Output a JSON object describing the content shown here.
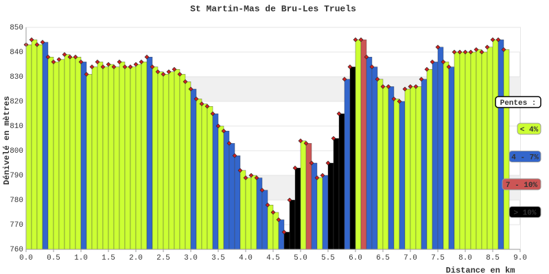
{
  "chart_data": {
    "type": "elevation-bar",
    "title": "St Martin-Mas de Bru-Les Truels",
    "x_label": "Distance en km",
    "y_label": "Dénivelé en mètres",
    "legend_title": "Pentes :",
    "slope_classes": [
      {
        "label": "< 4%",
        "color": "#ccff33"
      },
      {
        "label": "4 - 7%",
        "color": "#3366cc"
      },
      {
        "label": "7 - 10%",
        "color": "#cc5555"
      },
      {
        "label": "> 10%",
        "color": "#000000"
      }
    ],
    "x": [
      0.0,
      0.1,
      0.2,
      0.3,
      0.4,
      0.5,
      0.6,
      0.7,
      0.8,
      0.9,
      1.0,
      1.1,
      1.2,
      1.3,
      1.4,
      1.5,
      1.6,
      1.7,
      1.8,
      1.9,
      2.0,
      2.1,
      2.2,
      2.3,
      2.4,
      2.5,
      2.6,
      2.7,
      2.8,
      2.9,
      3.0,
      3.1,
      3.2,
      3.3,
      3.4,
      3.5,
      3.6,
      3.7,
      3.8,
      3.9,
      4.0,
      4.1,
      4.2,
      4.3,
      4.4,
      4.5,
      4.6,
      4.7,
      4.8,
      4.9,
      5.0,
      5.1,
      5.2,
      5.3,
      5.4,
      5.5,
      5.6,
      5.7,
      5.8,
      5.9,
      6.0,
      6.1,
      6.2,
      6.3,
      6.4,
      6.5,
      6.6,
      6.7,
      6.8,
      6.9,
      7.0,
      7.1,
      7.2,
      7.3,
      7.4,
      7.5,
      7.6,
      7.7,
      7.8,
      7.9,
      8.0,
      8.1,
      8.2,
      8.3,
      8.4,
      8.5,
      8.6,
      8.7
    ],
    "values": [
      843,
      845,
      843,
      844,
      838,
      836,
      837,
      839,
      838,
      838,
      836,
      831,
      834,
      836,
      834,
      835,
      834,
      836,
      834,
      834,
      835,
      836,
      838,
      834,
      832,
      831,
      832,
      833,
      831,
      828,
      825,
      821,
      819,
      818,
      815,
      810,
      808,
      803,
      798,
      792,
      789,
      790,
      789,
      784,
      778,
      775,
      772,
      767,
      780,
      793,
      804,
      803,
      795,
      789,
      790,
      795,
      805,
      815,
      829,
      834,
      845,
      845,
      838,
      834,
      829,
      826,
      826,
      821,
      820,
      825,
      826,
      826,
      829,
      833,
      836,
      842,
      836,
      834,
      840,
      840,
      840,
      840,
      841,
      840,
      842,
      845,
      845,
      841
    ],
    "bar_class": [
      0,
      0,
      0,
      1,
      0,
      0,
      0,
      0,
      0,
      0,
      1,
      0,
      0,
      0,
      0,
      0,
      0,
      0,
      0,
      0,
      0,
      0,
      1,
      0,
      0,
      0,
      0,
      0,
      0,
      0,
      1,
      0,
      0,
      0,
      1,
      0,
      1,
      1,
      1,
      0,
      0,
      0,
      1,
      1,
      0,
      0,
      1,
      3,
      3,
      3,
      0,
      2,
      1,
      0,
      1,
      3,
      3,
      3,
      1,
      3,
      0,
      2,
      1,
      1,
      0,
      0,
      1,
      0,
      1,
      0,
      0,
      0,
      1,
      0,
      1,
      1,
      0,
      1,
      0,
      0,
      0,
      0,
      0,
      0,
      0,
      0,
      1,
      0
    ],
    "marker_color": "#cc2222",
    "xlim": [
      0,
      9
    ],
    "ylim": [
      760,
      850
    ],
    "xticks": [
      {
        "value": 0,
        "label": "0.0"
      },
      0.5,
      {
        "value": 1,
        "label": "1.0"
      },
      1.5,
      {
        "value": 2,
        "label": "2.0"
      },
      2.5,
      {
        "value": 3,
        "label": "3.0"
      },
      3.5,
      {
        "value": 4,
        "label": "4.0"
      },
      4.5,
      {
        "value": 5,
        "label": "5.0"
      },
      5.5,
      {
        "value": 6,
        "label": "6.0"
      },
      6.5,
      {
        "value": 7,
        "label": "7.0"
      },
      7.5,
      {
        "value": 8,
        "label": "8.0"
      },
      8.5,
      {
        "value": 9,
        "label": "9.0"
      }
    ],
    "yticks": [
      760,
      770,
      780,
      790,
      800,
      810,
      820,
      830,
      840,
      850
    ],
    "grid": true
  }
}
